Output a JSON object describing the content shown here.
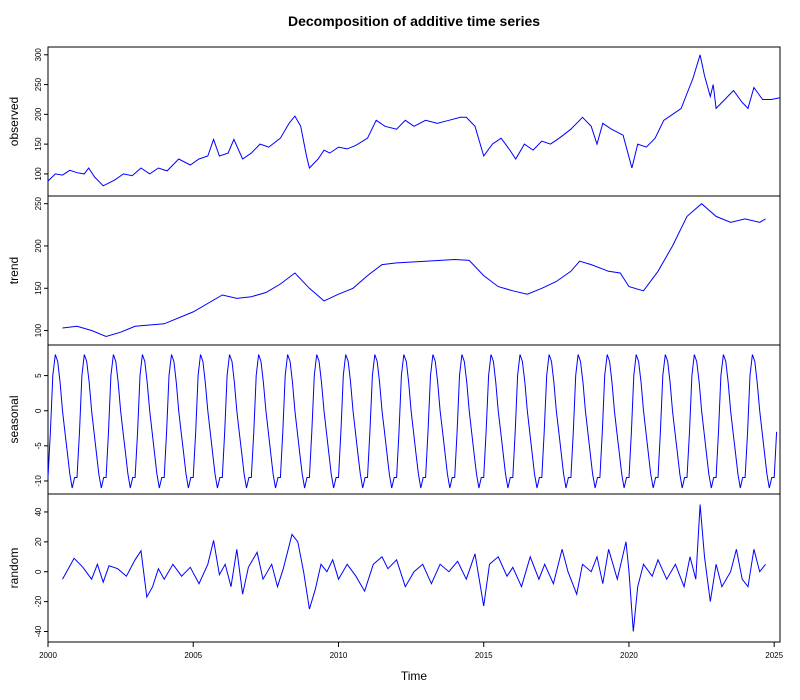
{
  "chart_data": {
    "type": "line",
    "title": "Decomposition of additive time series",
    "xlabel": "Time",
    "line_color": "#0000ff",
    "frame_color": "#000000",
    "xlim": [
      2000,
      2025.2
    ],
    "x_ticks": [
      2000,
      2005,
      2010,
      2015,
      2020,
      2025
    ],
    "panels": [
      {
        "name": "observed",
        "ylabel": "observed",
        "ylim": [
          73,
          303
        ],
        "y_ticks": [
          100,
          150,
          200,
          250,
          300
        ],
        "series": [
          {
            "t": 2000.0,
            "v": 88
          },
          {
            "t": 2000.25,
            "v": 100
          },
          {
            "t": 2000.5,
            "v": 98
          },
          {
            "t": 2000.75,
            "v": 106
          },
          {
            "t": 2001.0,
            "v": 102
          },
          {
            "t": 2001.25,
            "v": 100
          },
          {
            "t": 2001.4,
            "v": 110
          },
          {
            "t": 2001.6,
            "v": 95
          },
          {
            "t": 2001.9,
            "v": 80
          },
          {
            "t": 2002.1,
            "v": 85
          },
          {
            "t": 2002.3,
            "v": 90
          },
          {
            "t": 2002.6,
            "v": 100
          },
          {
            "t": 2002.9,
            "v": 97
          },
          {
            "t": 2003.2,
            "v": 110
          },
          {
            "t": 2003.5,
            "v": 100
          },
          {
            "t": 2003.8,
            "v": 110
          },
          {
            "t": 2004.1,
            "v": 105
          },
          {
            "t": 2004.5,
            "v": 125
          },
          {
            "t": 2004.9,
            "v": 115
          },
          {
            "t": 2005.2,
            "v": 125
          },
          {
            "t": 2005.5,
            "v": 130
          },
          {
            "t": 2005.7,
            "v": 158
          },
          {
            "t": 2005.9,
            "v": 130
          },
          {
            "t": 2006.2,
            "v": 135
          },
          {
            "t": 2006.4,
            "v": 158
          },
          {
            "t": 2006.7,
            "v": 125
          },
          {
            "t": 2007.0,
            "v": 135
          },
          {
            "t": 2007.3,
            "v": 150
          },
          {
            "t": 2007.6,
            "v": 145
          },
          {
            "t": 2008.0,
            "v": 160
          },
          {
            "t": 2008.3,
            "v": 185
          },
          {
            "t": 2008.5,
            "v": 197
          },
          {
            "t": 2008.7,
            "v": 180
          },
          {
            "t": 2008.9,
            "v": 130
          },
          {
            "t": 2009.0,
            "v": 110
          },
          {
            "t": 2009.3,
            "v": 125
          },
          {
            "t": 2009.5,
            "v": 140
          },
          {
            "t": 2009.7,
            "v": 135
          },
          {
            "t": 2010.0,
            "v": 145
          },
          {
            "t": 2010.3,
            "v": 142
          },
          {
            "t": 2010.6,
            "v": 148
          },
          {
            "t": 2011.0,
            "v": 160
          },
          {
            "t": 2011.3,
            "v": 190
          },
          {
            "t": 2011.6,
            "v": 180
          },
          {
            "t": 2012.0,
            "v": 175
          },
          {
            "t": 2012.3,
            "v": 190
          },
          {
            "t": 2012.6,
            "v": 180
          },
          {
            "t": 2013.0,
            "v": 190
          },
          {
            "t": 2013.4,
            "v": 185
          },
          {
            "t": 2013.8,
            "v": 190
          },
          {
            "t": 2014.2,
            "v": 195
          },
          {
            "t": 2014.4,
            "v": 195
          },
          {
            "t": 2014.7,
            "v": 180
          },
          {
            "t": 2015.0,
            "v": 130
          },
          {
            "t": 2015.3,
            "v": 150
          },
          {
            "t": 2015.6,
            "v": 160
          },
          {
            "t": 2015.9,
            "v": 140
          },
          {
            "t": 2016.1,
            "v": 125
          },
          {
            "t": 2016.4,
            "v": 150
          },
          {
            "t": 2016.7,
            "v": 140
          },
          {
            "t": 2017.0,
            "v": 155
          },
          {
            "t": 2017.3,
            "v": 150
          },
          {
            "t": 2017.6,
            "v": 160
          },
          {
            "t": 2018.0,
            "v": 175
          },
          {
            "t": 2018.4,
            "v": 195
          },
          {
            "t": 2018.7,
            "v": 180
          },
          {
            "t": 2018.9,
            "v": 150
          },
          {
            "t": 2019.1,
            "v": 185
          },
          {
            "t": 2019.4,
            "v": 175
          },
          {
            "t": 2019.8,
            "v": 165
          },
          {
            "t": 2020.1,
            "v": 110
          },
          {
            "t": 2020.3,
            "v": 150
          },
          {
            "t": 2020.6,
            "v": 145
          },
          {
            "t": 2020.9,
            "v": 160
          },
          {
            "t": 2021.2,
            "v": 190
          },
          {
            "t": 2021.5,
            "v": 200
          },
          {
            "t": 2021.8,
            "v": 210
          },
          {
            "t": 2022.0,
            "v": 235
          },
          {
            "t": 2022.2,
            "v": 260
          },
          {
            "t": 2022.45,
            "v": 300
          },
          {
            "t": 2022.6,
            "v": 265
          },
          {
            "t": 2022.8,
            "v": 230
          },
          {
            "t": 2022.9,
            "v": 250
          },
          {
            "t": 2023.0,
            "v": 210
          },
          {
            "t": 2023.3,
            "v": 225
          },
          {
            "t": 2023.6,
            "v": 240
          },
          {
            "t": 2023.9,
            "v": 220
          },
          {
            "t": 2024.1,
            "v": 210
          },
          {
            "t": 2024.3,
            "v": 245
          },
          {
            "t": 2024.6,
            "v": 225
          },
          {
            "t": 2024.9,
            "v": 225
          },
          {
            "t": 2025.2,
            "v": 228
          }
        ]
      },
      {
        "name": "trend",
        "ylabel": "trend",
        "ylim": [
          90,
          252
        ],
        "y_ticks": [
          100,
          150,
          200,
          250
        ],
        "series": [
          {
            "t": 2000.5,
            "v": 103
          },
          {
            "t": 2001.0,
            "v": 105
          },
          {
            "t": 2001.5,
            "v": 100
          },
          {
            "t": 2002.0,
            "v": 93
          },
          {
            "t": 2002.5,
            "v": 98
          },
          {
            "t": 2003.0,
            "v": 105
          },
          {
            "t": 2004.0,
            "v": 108
          },
          {
            "t": 2005.0,
            "v": 122
          },
          {
            "t": 2006.0,
            "v": 142
          },
          {
            "t": 2006.5,
            "v": 138
          },
          {
            "t": 2007.0,
            "v": 140
          },
          {
            "t": 2007.5,
            "v": 145
          },
          {
            "t": 2008.0,
            "v": 155
          },
          {
            "t": 2008.5,
            "v": 168
          },
          {
            "t": 2009.0,
            "v": 150
          },
          {
            "t": 2009.5,
            "v": 135
          },
          {
            "t": 2010.0,
            "v": 143
          },
          {
            "t": 2010.5,
            "v": 150
          },
          {
            "t": 2011.0,
            "v": 165
          },
          {
            "t": 2011.5,
            "v": 178
          },
          {
            "t": 2012.0,
            "v": 180
          },
          {
            "t": 2013.0,
            "v": 182
          },
          {
            "t": 2014.0,
            "v": 184
          },
          {
            "t": 2014.5,
            "v": 183
          },
          {
            "t": 2015.0,
            "v": 165
          },
          {
            "t": 2015.5,
            "v": 152
          },
          {
            "t": 2016.0,
            "v": 147
          },
          {
            "t": 2016.5,
            "v": 143
          },
          {
            "t": 2017.0,
            "v": 150
          },
          {
            "t": 2017.5,
            "v": 158
          },
          {
            "t": 2018.0,
            "v": 170
          },
          {
            "t": 2018.3,
            "v": 182
          },
          {
            "t": 2018.7,
            "v": 178
          },
          {
            "t": 2019.3,
            "v": 170
          },
          {
            "t": 2019.7,
            "v": 168
          },
          {
            "t": 2020.0,
            "v": 152
          },
          {
            "t": 2020.5,
            "v": 147
          },
          {
            "t": 2021.0,
            "v": 170
          },
          {
            "t": 2021.5,
            "v": 200
          },
          {
            "t": 2022.0,
            "v": 235
          },
          {
            "t": 2022.5,
            "v": 250
          },
          {
            "t": 2023.0,
            "v": 235
          },
          {
            "t": 2023.5,
            "v": 228
          },
          {
            "t": 2024.0,
            "v": 232
          },
          {
            "t": 2024.5,
            "v": 228
          },
          {
            "t": 2024.7,
            "v": 232
          }
        ]
      },
      {
        "name": "seasonal",
        "ylabel": "seasonal",
        "ylim": [
          -11,
          8.5
        ],
        "y_ticks": [
          -10,
          -5,
          0,
          5
        ],
        "seasonal_pattern": {
          "period": 1,
          "months": [
            -9.5,
            -3,
            5,
            8,
            7,
            4,
            0,
            -3,
            -6,
            -9,
            -11,
            -9.5
          ],
          "start": 2000.0,
          "end": 2025.1
        }
      },
      {
        "name": "random",
        "ylabel": "random",
        "ylim": [
          -43,
          48
        ],
        "y_ticks": [
          -40,
          -20,
          0,
          20,
          40
        ],
        "series": [
          {
            "t": 2000.5,
            "v": -5
          },
          {
            "t": 2000.7,
            "v": 2
          },
          {
            "t": 2000.9,
            "v": 9
          },
          {
            "t": 2001.2,
            "v": 3
          },
          {
            "t": 2001.5,
            "v": -5
          },
          {
            "t": 2001.7,
            "v": 5
          },
          {
            "t": 2001.9,
            "v": -7
          },
          {
            "t": 2002.1,
            "v": 4
          },
          {
            "t": 2002.4,
            "v": 2
          },
          {
            "t": 2002.7,
            "v": -3
          },
          {
            "t": 2003.0,
            "v": 8
          },
          {
            "t": 2003.2,
            "v": 14
          },
          {
            "t": 2003.4,
            "v": -17
          },
          {
            "t": 2003.6,
            "v": -10
          },
          {
            "t": 2003.8,
            "v": 2
          },
          {
            "t": 2004.0,
            "v": -5
          },
          {
            "t": 2004.3,
            "v": 5
          },
          {
            "t": 2004.6,
            "v": -3
          },
          {
            "t": 2004.9,
            "v": 3
          },
          {
            "t": 2005.2,
            "v": -8
          },
          {
            "t": 2005.5,
            "v": 5
          },
          {
            "t": 2005.7,
            "v": 21
          },
          {
            "t": 2005.9,
            "v": -2
          },
          {
            "t": 2006.1,
            "v": 5
          },
          {
            "t": 2006.3,
            "v": -10
          },
          {
            "t": 2006.5,
            "v": 15
          },
          {
            "t": 2006.7,
            "v": -15
          },
          {
            "t": 2006.9,
            "v": 3
          },
          {
            "t": 2007.2,
            "v": 13
          },
          {
            "t": 2007.4,
            "v": -5
          },
          {
            "t": 2007.7,
            "v": 5
          },
          {
            "t": 2007.9,
            "v": -10
          },
          {
            "t": 2008.1,
            "v": 2
          },
          {
            "t": 2008.4,
            "v": 25
          },
          {
            "t": 2008.6,
            "v": 20
          },
          {
            "t": 2008.8,
            "v": 0
          },
          {
            "t": 2009.0,
            "v": -25
          },
          {
            "t": 2009.2,
            "v": -12
          },
          {
            "t": 2009.4,
            "v": 5
          },
          {
            "t": 2009.6,
            "v": 0
          },
          {
            "t": 2009.8,
            "v": 8
          },
          {
            "t": 2010.0,
            "v": -5
          },
          {
            "t": 2010.3,
            "v": 5
          },
          {
            "t": 2010.6,
            "v": -3
          },
          {
            "t": 2010.9,
            "v": -13
          },
          {
            "t": 2011.2,
            "v": 5
          },
          {
            "t": 2011.5,
            "v": 10
          },
          {
            "t": 2011.7,
            "v": 2
          },
          {
            "t": 2012.0,
            "v": 8
          },
          {
            "t": 2012.3,
            "v": -10
          },
          {
            "t": 2012.6,
            "v": 0
          },
          {
            "t": 2012.9,
            "v": 5
          },
          {
            "t": 2013.2,
            "v": -8
          },
          {
            "t": 2013.5,
            "v": 5
          },
          {
            "t": 2013.8,
            "v": 0
          },
          {
            "t": 2014.1,
            "v": 7
          },
          {
            "t": 2014.4,
            "v": -5
          },
          {
            "t": 2014.7,
            "v": 12
          },
          {
            "t": 2015.0,
            "v": -23
          },
          {
            "t": 2015.2,
            "v": 5
          },
          {
            "t": 2015.5,
            "v": 10
          },
          {
            "t": 2015.8,
            "v": -3
          },
          {
            "t": 2016.0,
            "v": 3
          },
          {
            "t": 2016.3,
            "v": -10
          },
          {
            "t": 2016.6,
            "v": 10
          },
          {
            "t": 2016.9,
            "v": -5
          },
          {
            "t": 2017.1,
            "v": 5
          },
          {
            "t": 2017.4,
            "v": -8
          },
          {
            "t": 2017.7,
            "v": 15
          },
          {
            "t": 2017.9,
            "v": 0
          },
          {
            "t": 2018.2,
            "v": -15
          },
          {
            "t": 2018.4,
            "v": 5
          },
          {
            "t": 2018.7,
            "v": 0
          },
          {
            "t": 2018.9,
            "v": 10
          },
          {
            "t": 2019.1,
            "v": -8
          },
          {
            "t": 2019.3,
            "v": 15
          },
          {
            "t": 2019.6,
            "v": -5
          },
          {
            "t": 2019.9,
            "v": 20
          },
          {
            "t": 2020.0,
            "v": 0
          },
          {
            "t": 2020.15,
            "v": -40
          },
          {
            "t": 2020.3,
            "v": -10
          },
          {
            "t": 2020.5,
            "v": 5
          },
          {
            "t": 2020.8,
            "v": -3
          },
          {
            "t": 2021.0,
            "v": 8
          },
          {
            "t": 2021.3,
            "v": -5
          },
          {
            "t": 2021.6,
            "v": 5
          },
          {
            "t": 2021.9,
            "v": -10
          },
          {
            "t": 2022.1,
            "v": 10
          },
          {
            "t": 2022.3,
            "v": -5
          },
          {
            "t": 2022.45,
            "v": 45
          },
          {
            "t": 2022.6,
            "v": 10
          },
          {
            "t": 2022.8,
            "v": -20
          },
          {
            "t": 2023.0,
            "v": 5
          },
          {
            "t": 2023.2,
            "v": -10
          },
          {
            "t": 2023.5,
            "v": 0
          },
          {
            "t": 2023.7,
            "v": 15
          },
          {
            "t": 2023.9,
            "v": -5
          },
          {
            "t": 2024.1,
            "v": -10
          },
          {
            "t": 2024.3,
            "v": 15
          },
          {
            "t": 2024.5,
            "v": 0
          },
          {
            "t": 2024.7,
            "v": 5
          }
        ]
      }
    ]
  }
}
